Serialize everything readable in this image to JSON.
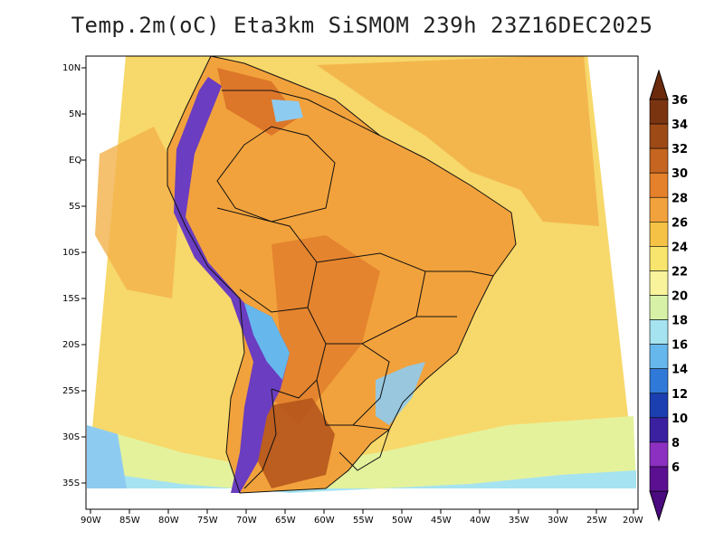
{
  "title": "Temp.2m(oC) Eta3km SiSMOM 239h 23Z16DEC2025",
  "map": {
    "latitude_labels": [
      "10N",
      "5N",
      "EQ",
      "5S",
      "10S",
      "15S",
      "20S",
      "25S",
      "30S",
      "35S"
    ],
    "longitude_labels": [
      "90W",
      "85W",
      "80W",
      "75W",
      "70W",
      "65W",
      "60W",
      "55W",
      "50W",
      "45W",
      "40W",
      "35W",
      "30W",
      "25W",
      "20W"
    ],
    "lon_range": [
      -90,
      -20
    ],
    "lat_range": [
      -38,
      12
    ],
    "ocean_color": "#f5e07a",
    "land_color": "#f2a23c"
  },
  "colorbar": {
    "levels": [
      "36",
      "34",
      "32",
      "30",
      "28",
      "26",
      "24",
      "22",
      "20",
      "18",
      "16",
      "14",
      "12",
      "10",
      "8",
      "6"
    ],
    "colors": [
      "#7a3410",
      "#9e4a16",
      "#c5651f",
      "#e5812b",
      "#f2a23c",
      "#f5c245",
      "#f7e56d",
      "#f9f39c",
      "#d7f2a6",
      "#a6e3f0",
      "#66b8ec",
      "#2f7ad8",
      "#1b3fb0",
      "#3b20a0",
      "#8b30c0",
      "#5a1090"
    ],
    "top_color": "#6b2a0c",
    "bottom_color": "#4b0a80"
  }
}
